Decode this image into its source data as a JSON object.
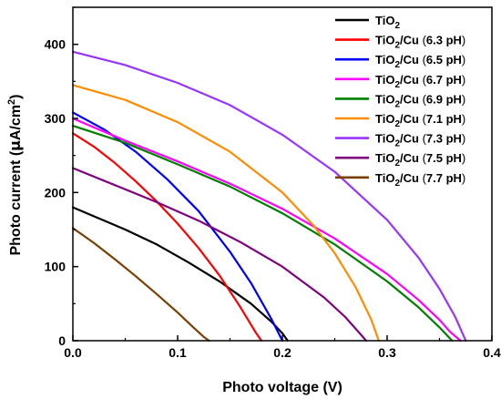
{
  "chart_data": {
    "type": "line",
    "xlabel": "Photo voltage (V)",
    "ylabel_parts": [
      "Photo current (",
      "μ",
      "A/cm",
      "2",
      ")"
    ],
    "xlim": [
      0,
      0.4
    ],
    "ylim": [
      0,
      450
    ],
    "xticks": [
      0.0,
      0.1,
      0.2,
      0.3,
      0.4
    ],
    "xtick_labels": [
      "0.0",
      "0.1",
      "0.2",
      "0.3",
      "0.4"
    ],
    "yticks": [
      0,
      100,
      200,
      300,
      400
    ],
    "ytick_labels": [
      "0",
      "100",
      "200",
      "300",
      "400"
    ],
    "grid": false,
    "legend_position": "top-right",
    "series": [
      {
        "name": "TiO2",
        "legend_parts": [
          "TiO",
          "2",
          ""
        ],
        "color": "#000000",
        "x": [
          0,
          0.02,
          0.05,
          0.08,
          0.11,
          0.14,
          0.17,
          0.19,
          0.2,
          0.205
        ],
        "y": [
          180,
          168,
          150,
          130,
          106,
          80,
          50,
          25,
          10,
          0
        ]
      },
      {
        "name": "TiO2/Cu (6.3 pH)",
        "legend_parts": [
          "TiO",
          "2",
          "/Cu ",
          "(",
          "6.3 pH",
          ")"
        ],
        "color": "#ff0000",
        "x": [
          0,
          0.02,
          0.04,
          0.06,
          0.08,
          0.1,
          0.12,
          0.14,
          0.16,
          0.175,
          0.18
        ],
        "y": [
          280,
          262,
          240,
          215,
          188,
          158,
          125,
          88,
          45,
          10,
          0
        ]
      },
      {
        "name": "TiO2/Cu (6.5 pH)",
        "legend_parts": [
          "TiO",
          "2",
          "/Cu ",
          "(",
          "6.5 pH",
          ")"
        ],
        "color": "#0000ff",
        "x": [
          0,
          0.03,
          0.06,
          0.09,
          0.12,
          0.15,
          0.17,
          0.19,
          0.2
        ],
        "y": [
          308,
          285,
          255,
          218,
          175,
          120,
          78,
          28,
          0
        ]
      },
      {
        "name": "TiO2/Cu (6.7 pH)",
        "legend_parts": [
          "TiO",
          "2",
          "/Cu ",
          "(",
          "6.7 pH",
          ")"
        ],
        "color": "#ff00ff",
        "x": [
          0,
          0.05,
          0.1,
          0.15,
          0.2,
          0.25,
          0.3,
          0.33,
          0.35,
          0.36,
          0.37
        ],
        "y": [
          300,
          270,
          242,
          212,
          178,
          138,
          90,
          55,
          28,
          12,
          0
        ]
      },
      {
        "name": "TiO2/Cu (6.9 pH)",
        "legend_parts": [
          "TiO",
          "2",
          "/Cu ",
          "(",
          "6.9 pH",
          ")"
        ],
        "color": "#008000",
        "x": [
          0,
          0.05,
          0.1,
          0.15,
          0.2,
          0.25,
          0.3,
          0.33,
          0.35,
          0.362
        ],
        "y": [
          290,
          267,
          238,
          208,
          172,
          130,
          80,
          45,
          18,
          0
        ]
      },
      {
        "name": "TiO2/Cu (7.1 pH)",
        "legend_parts": [
          "TiO",
          "2",
          "/Cu ",
          "(",
          "7.1 pH",
          ")"
        ],
        "color": "#ff8c00",
        "x": [
          0,
          0.05,
          0.1,
          0.15,
          0.2,
          0.23,
          0.25,
          0.27,
          0.285,
          0.292
        ],
        "y": [
          345,
          325,
          295,
          255,
          200,
          155,
          118,
          72,
          28,
          0
        ]
      },
      {
        "name": "TiO2/Cu (7.3 pH)",
        "legend_parts": [
          "TiO",
          "2",
          "/Cu ",
          "(",
          "7.3 pH",
          ")"
        ],
        "color": "#9933ff",
        "x": [
          0,
          0.05,
          0.1,
          0.15,
          0.2,
          0.25,
          0.3,
          0.33,
          0.35,
          0.365,
          0.375
        ],
        "y": [
          390,
          372,
          348,
          318,
          278,
          228,
          163,
          112,
          70,
          32,
          0
        ]
      },
      {
        "name": "TiO2/Cu (7.5 pH)",
        "legend_parts": [
          "TiO",
          "2",
          "/Cu ",
          "(",
          "7.5 pH",
          ")"
        ],
        "color": "#800080",
        "x": [
          0,
          0.04,
          0.08,
          0.12,
          0.16,
          0.2,
          0.24,
          0.26,
          0.275,
          0.28
        ],
        "y": [
          233,
          210,
          187,
          162,
          133,
          100,
          58,
          32,
          8,
          0
        ]
      },
      {
        "name": "TiO2/Cu (7.7 pH)",
        "legend_parts": [
          "TiO",
          "2",
          "/Cu ",
          "(",
          "7.7 pH",
          ")"
        ],
        "color": "#7b3f00",
        "x": [
          0,
          0.02,
          0.04,
          0.06,
          0.08,
          0.1,
          0.115,
          0.125,
          0.13
        ],
        "y": [
          152,
          132,
          110,
          87,
          63,
          38,
          18,
          5,
          0
        ]
      }
    ]
  }
}
